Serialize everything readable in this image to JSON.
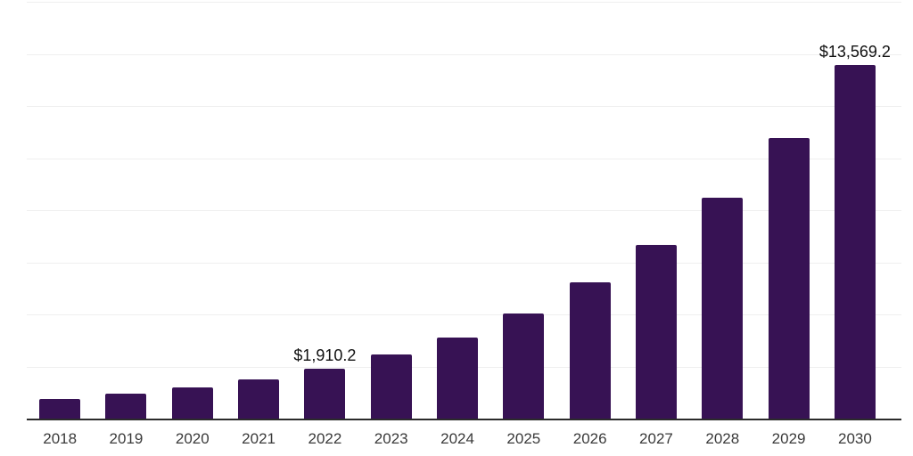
{
  "chart_data": {
    "type": "bar",
    "title": "",
    "xlabel": "",
    "ylabel": "",
    "categories": [
      "2018",
      "2019",
      "2020",
      "2021",
      "2022",
      "2023",
      "2024",
      "2025",
      "2026",
      "2027",
      "2028",
      "2029",
      "2030"
    ],
    "values": [
      740,
      950,
      1190,
      1490,
      1910.2,
      2450,
      3120,
      4030,
      5230,
      6660,
      8480,
      10760,
      13569.2
    ],
    "value_labels": [
      {
        "category_index": 4,
        "text": "$1,910.2"
      },
      {
        "category_index": 12,
        "text": "$13,569.2"
      }
    ],
    "ylim": [
      0,
      16000
    ],
    "grid_interval": 2000,
    "grid": "horizontal",
    "legend": "none",
    "y_tick_labels": "none",
    "colors": {
      "bar": "#371254",
      "gridline": "#efefef",
      "axis_line": "#2b2b2b",
      "tick_label": "#3a3a3a",
      "value_label": "#111111",
      "background": "#ffffff"
    }
  }
}
